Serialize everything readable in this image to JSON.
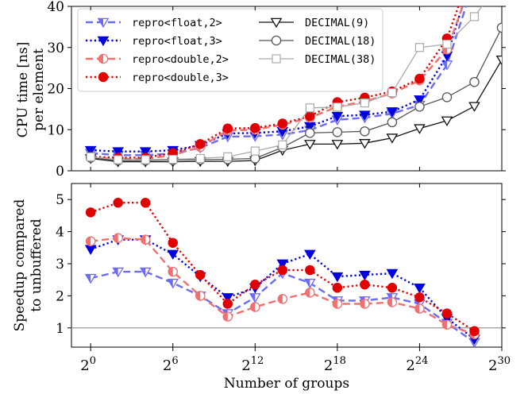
{
  "chart_data": [
    {
      "type": "line",
      "ylabel_line1": "CPU time [ns]",
      "ylabel_line2": "per element",
      "ylim": [
        0,
        40
      ],
      "yticks": [
        0,
        10,
        20,
        30,
        40
      ],
      "x_scale": "log2",
      "legend_placement": "top-left",
      "series": [
        {
          "name": "repro<float,2>",
          "color": "#6b6bf5",
          "style": "dashed",
          "marker": "triangle-down-hollow-half",
          "x": [
            1,
            4,
            16,
            64,
            256,
            1024,
            4096,
            16384,
            65536,
            262144,
            1048576,
            4194304,
            16777216,
            67108864,
            201326592
          ],
          "y": [
            4.3,
            3.8,
            3.8,
            4.2,
            5.6,
            8.3,
            8.4,
            8.8,
            9.9,
            12.4,
            12.9,
            13.9,
            16.0,
            25.8,
            42
          ]
        },
        {
          "name": "repro<float,3>",
          "color": "#0000e0",
          "style": "dotted",
          "marker": "triangle-down-filled",
          "x": [
            1,
            4,
            16,
            64,
            256,
            1024,
            4096,
            16384,
            65536,
            262144,
            1048576,
            4194304,
            16777216,
            67108864,
            201326592
          ],
          "y": [
            5.0,
            4.7,
            4.7,
            5.0,
            6.2,
            9.1,
            9.2,
            9.6,
            10.8,
            13.3,
            13.6,
            14.4,
            17.3,
            28.0,
            45
          ]
        },
        {
          "name": "repro<double,2>",
          "color": "#f07070",
          "style": "dashed",
          "marker": "circle-half",
          "x": [
            1,
            4,
            16,
            64,
            256,
            1024,
            4096,
            16384,
            65536,
            262144,
            1048576,
            4194304,
            16777216,
            67108864,
            201326592
          ],
          "y": [
            3.2,
            2.9,
            2.9,
            3.8,
            5.8,
            9.8,
            10.0,
            11.2,
            12.9,
            15.6,
            16.9,
            18.8,
            22.0,
            29.5,
            44
          ]
        },
        {
          "name": "repro<double,3>",
          "color": "#e00000",
          "style": "dotted",
          "marker": "circle-filled",
          "x": [
            1,
            4,
            16,
            64,
            256,
            1024,
            4096,
            16384,
            65536,
            262144,
            1048576,
            4194304,
            16777216,
            67108864,
            201326592
          ],
          "y": [
            3.4,
            3.2,
            3.2,
            4.3,
            6.5,
            10.3,
            10.4,
            11.5,
            13.3,
            16.7,
            17.8,
            19.3,
            22.4,
            32.2,
            47
          ]
        },
        {
          "name": "DECIMAL(9)",
          "color": "#111111",
          "style": "solid",
          "marker": "triangle-down-hollow",
          "x": [
            1,
            4,
            16,
            64,
            256,
            1024,
            4096,
            16384,
            65536,
            262144,
            1048576,
            4194304,
            16777216,
            67108864,
            268435456,
            1073741824
          ],
          "y": [
            3.0,
            2.2,
            2.2,
            2.2,
            2.3,
            2.3,
            2.5,
            5.0,
            6.5,
            6.5,
            6.7,
            8.0,
            10.3,
            12.2,
            15.7,
            27.0
          ]
        },
        {
          "name": "DECIMAL(18)",
          "color": "#555555",
          "style": "solid",
          "marker": "circle-hollow",
          "x": [
            1,
            4,
            16,
            64,
            256,
            1024,
            4096,
            16384,
            65536,
            262144,
            1048576,
            4194304,
            16777216,
            67108864,
            268435456,
            1073741824
          ],
          "y": [
            3.2,
            2.5,
            2.5,
            2.6,
            2.7,
            2.8,
            3.0,
            5.7,
            9.2,
            9.4,
            9.6,
            11.8,
            15.6,
            17.9,
            21.6,
            34.8
          ]
        },
        {
          "name": "DECIMAL(38)",
          "color": "#aaaaaa",
          "style": "solid",
          "marker": "square-hollow",
          "x": [
            1,
            4,
            16,
            64,
            256,
            1024,
            4096,
            16384,
            65536,
            262144,
            1048576,
            4194304,
            16777216,
            67108864,
            268435456,
            536870912
          ],
          "y": [
            3.4,
            2.7,
            2.7,
            2.8,
            3.0,
            3.4,
            4.8,
            6.3,
            15.3,
            15.5,
            16.5,
            19.0,
            30.0,
            30.8,
            37.5,
            42
          ]
        }
      ]
    },
    {
      "type": "line",
      "ylabel_line1": "Speedup compared",
      "ylabel_line2": "to unbuffered",
      "ylim": [
        0.4,
        5.5
      ],
      "yticks": [
        1,
        2,
        3,
        4,
        5
      ],
      "reference_line": 1,
      "xlabel": "Number of groups",
      "x_scale": "log2",
      "xticks": [
        {
          "value": 1,
          "base": "2",
          "exp": "0"
        },
        {
          "value": 64,
          "base": "2",
          "exp": "6"
        },
        {
          "value": 4096,
          "base": "2",
          "exp": "12"
        },
        {
          "value": 262144,
          "base": "2",
          "exp": "18"
        },
        {
          "value": 16777216,
          "base": "2",
          "exp": "24"
        },
        {
          "value": 1073741824,
          "base": "2",
          "exp": "30"
        }
      ],
      "series": [
        {
          "name": "repro<float,2>",
          "color": "#6b6bf5",
          "style": "dashed",
          "marker": "triangle-down-hollow-half",
          "x": [
            1,
            4,
            16,
            64,
            256,
            1024,
            4096,
            16384,
            65536,
            262144,
            1048576,
            4194304,
            16777216,
            67108864,
            268435456
          ],
          "y": [
            2.55,
            2.75,
            2.75,
            2.4,
            2.0,
            1.45,
            1.95,
            2.7,
            2.4,
            1.85,
            1.85,
            1.95,
            1.75,
            1.15,
            0.55
          ]
        },
        {
          "name": "repro<float,3>",
          "color": "#0000e0",
          "style": "dotted",
          "marker": "triangle-down-filled",
          "x": [
            1,
            4,
            16,
            64,
            256,
            1024,
            4096,
            16384,
            65536,
            262144,
            1048576,
            4194304,
            16777216,
            67108864,
            268435456
          ],
          "y": [
            3.45,
            3.75,
            3.75,
            3.3,
            2.6,
            1.95,
            2.25,
            3.0,
            3.3,
            2.6,
            2.65,
            2.7,
            2.25,
            1.3,
            0.65
          ]
        },
        {
          "name": "repro<double,2>",
          "color": "#f07070",
          "style": "dashed",
          "marker": "circle-half",
          "x": [
            1,
            4,
            16,
            64,
            256,
            1024,
            4096,
            16384,
            65536,
            262144,
            1048576,
            4194304,
            16777216,
            67108864,
            268435456
          ],
          "y": [
            3.7,
            3.8,
            3.75,
            2.75,
            2.0,
            1.35,
            1.65,
            1.9,
            2.1,
            1.75,
            1.75,
            1.8,
            1.6,
            1.1,
            0.8
          ]
        },
        {
          "name": "repro<double,3>",
          "color": "#e00000",
          "style": "dotted",
          "marker": "circle-filled",
          "x": [
            1,
            4,
            16,
            64,
            256,
            1024,
            4096,
            16384,
            65536,
            262144,
            1048576,
            4194304,
            16777216,
            67108864,
            268435456
          ],
          "y": [
            4.6,
            4.9,
            4.9,
            3.65,
            2.65,
            1.75,
            2.35,
            2.8,
            2.8,
            2.25,
            2.35,
            2.25,
            1.95,
            1.45,
            0.9
          ]
        }
      ]
    }
  ]
}
